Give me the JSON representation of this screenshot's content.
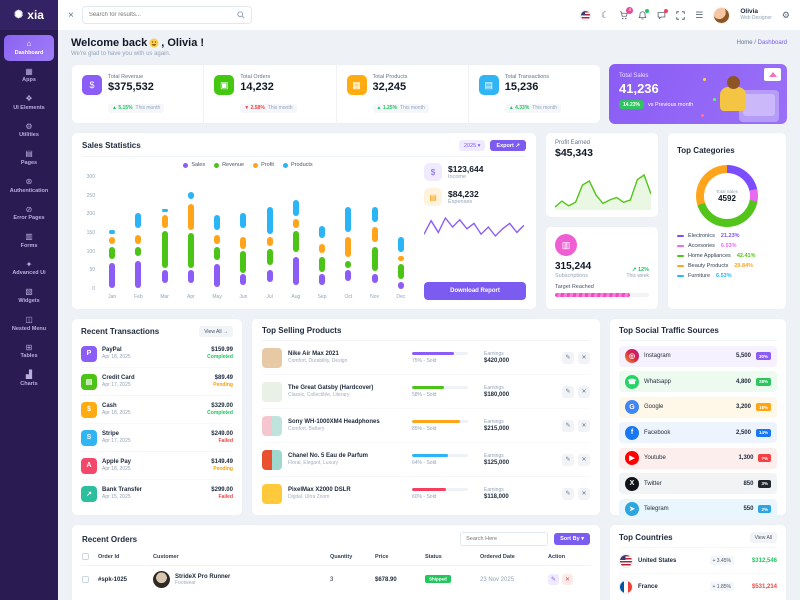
{
  "theme": {
    "accent": "#7c5cf0",
    "sidebar_bg": "#2a1c52",
    "success": "#22c55e",
    "danger": "#ef4444",
    "warning": "#f59e0b"
  },
  "sidebar": {
    "logo_text": "xia",
    "logo_icon": "✺",
    "items": [
      {
        "label": "Dashboard",
        "icon": "⌂"
      },
      {
        "label": "Apps",
        "icon": "▦"
      },
      {
        "label": "UI Elements",
        "icon": "❖"
      },
      {
        "label": "Utilities",
        "icon": "⚙"
      },
      {
        "label": "Pages",
        "icon": "▤"
      },
      {
        "label": "Authentication",
        "icon": "⊛"
      },
      {
        "label": "Error Pages",
        "icon": "⊘"
      },
      {
        "label": "Forms",
        "icon": "▥"
      },
      {
        "label": "Advanced Ui",
        "icon": "✦"
      },
      {
        "label": "Widgets",
        "icon": "▧"
      },
      {
        "label": "Nested Menu",
        "icon": "◫"
      },
      {
        "label": "Tables",
        "icon": "⊞"
      },
      {
        "label": "Charts",
        "icon": "▟"
      }
    ]
  },
  "topbar": {
    "close_icon": "×",
    "search_placeholder": "Search for results...",
    "cart_badge": "4",
    "moon_icon": "☾",
    "menu_icon": "☰",
    "gear_icon": "⚙",
    "user": {
      "name": "Olivia",
      "role": "Web Designer"
    }
  },
  "welcome": {
    "greeting": "Welcome back",
    "name_part": ", Olivia !",
    "subtitle": "We're glad to have you with us again."
  },
  "breadcrumb": {
    "home": "Home",
    "sep": "/",
    "current": "Dashboard"
  },
  "stats": [
    {
      "label": "Total Revenue",
      "value": "$375,532",
      "arrow": "▲",
      "pct": "5.15%",
      "note": "This month",
      "pct_color": "#22c55e",
      "icon": "$",
      "icon_bg": "#8b5cf6"
    },
    {
      "label": "Total Orders",
      "value": "14,232",
      "arrow": "▼",
      "pct": "2.58%",
      "note": "This month",
      "pct_color": "#ef4444",
      "icon": "▣",
      "icon_bg": "#43c710"
    },
    {
      "label": "Total Products",
      "value": "32,245",
      "arrow": "▲",
      "pct": "1.25%",
      "note": "This month",
      "pct_color": "#22c55e",
      "icon": "▦",
      "icon_bg": "#ffac12"
    },
    {
      "label": "Total Transactions",
      "value": "15,236",
      "arrow": "▲",
      "pct": "4.33%",
      "note": "This month",
      "pct_color": "#22c55e",
      "icon": "▤",
      "icon_bg": "#2fb5f3"
    }
  ],
  "total_sales": {
    "label": "Total Sales",
    "value": "41,236",
    "badge": "14.23%",
    "note": "vs Previous month"
  },
  "sales_statistics": {
    "title": "Sales Statistics",
    "year": "2025 ▾",
    "export_label": "Export ↗",
    "income": {
      "value": "$123,644",
      "label": "Income",
      "icon": "$",
      "icon_bg": "#efeaff",
      "icon_color": "#7c5cf0"
    },
    "expenses": {
      "value": "$84,232",
      "label": "Expenses",
      "icon": "▤",
      "icon_bg": "#fff3dd",
      "icon_color": "#f59e0b"
    },
    "income_trend": [
      40,
      55,
      42,
      58,
      48,
      56,
      46,
      52,
      40,
      48,
      38,
      46,
      52,
      42,
      50
    ],
    "download_label": "Download Report"
  },
  "chart_data": [
    {
      "type": "bar",
      "title": "Sales Statistics",
      "x": [
        "Jan",
        "Feb",
        "Mar",
        "Apr",
        "May",
        "Jun",
        "Jul",
        "Aug",
        "Sep",
        "Oct",
        "Nov",
        "Dec"
      ],
      "ylim": [
        0,
        300
      ],
      "yticks": [
        0,
        50,
        100,
        150,
        200,
        250,
        300
      ],
      "legend_position": "top",
      "grid": false,
      "series": [
        {
          "name": "Sales",
          "color": "#8b5cf6",
          "ranges": [
            [
              10,
              75
            ],
            [
              10,
              80
            ],
            [
              22,
              55
            ],
            [
              22,
              55
            ],
            [
              12,
              70
            ],
            [
              18,
              45
            ],
            [
              25,
              55
            ],
            [
              18,
              90
            ],
            [
              18,
              45
            ],
            [
              28,
              55
            ],
            [
              22,
              45
            ],
            [
              8,
              25
            ]
          ]
        },
        {
          "name": "Revenue",
          "color": "#4cc417",
          "ranges": [
            [
              85,
              115
            ],
            [
              92,
              115
            ],
            [
              62,
              155
            ],
            [
              62,
              150
            ],
            [
              82,
              115
            ],
            [
              48,
              105
            ],
            [
              68,
              110
            ],
            [
              103,
              155
            ],
            [
              50,
              90
            ],
            [
              60,
              78
            ],
            [
              53,
              115
            ],
            [
              33,
              70
            ]
          ]
        },
        {
          "name": "Profit",
          "color": "#ffa41b",
          "ranges": [
            [
              122,
              140
            ],
            [
              122,
              145
            ],
            [
              162,
              195
            ],
            [
              158,
              225
            ],
            [
              122,
              145
            ],
            [
              110,
              140
            ],
            [
              118,
              140
            ],
            [
              162,
              185
            ],
            [
              98,
              122
            ],
            [
              88,
              140
            ],
            [
              128,
              165
            ],
            [
              80,
              92
            ]
          ]
        },
        {
          "name": "Products",
          "color": "#29b5f6",
          "ranges": [
            [
              148,
              157
            ],
            [
              162,
              200
            ],
            [
              203,
              211
            ],
            [
              237,
              255
            ],
            [
              158,
              195
            ],
            [
              162,
              200
            ],
            [
              148,
              215
            ],
            [
              193,
              235
            ],
            [
              138,
              168
            ],
            [
              152,
              215
            ],
            [
              178,
              215
            ],
            [
              103,
              140
            ]
          ]
        }
      ]
    },
    {
      "type": "pie",
      "title": "Top Categories",
      "center": {
        "label": "Total Sales",
        "value": 4592
      },
      "labels": [
        "Electronics",
        "Accesories",
        "Home Appliances",
        "Beauty Products",
        "Furniture"
      ],
      "values": [
        21.23,
        6.53,
        42.41,
        29.84,
        6.53
      ],
      "colors": [
        "#7c4dff",
        "#e86af0",
        "#52c41a",
        "#ffa41b",
        "#29b5f6"
      ]
    }
  ],
  "profit_earned": {
    "label": "Profit Earned",
    "value": "$45,343",
    "color": "#52c41a",
    "trend": [
      18,
      28,
      20,
      26,
      55,
      62,
      38,
      24,
      30,
      34,
      26,
      30,
      64,
      72,
      40
    ]
  },
  "subscriptions": {
    "icon": "▥",
    "value": "315,244",
    "label": "Subscriptions",
    "change": "↗ 12%",
    "note": "This week",
    "target_label": "Target Reached",
    "progress": 80
  },
  "top_categories": {
    "title": "Top Categories",
    "center_label": "Total Sales",
    "center_value": "4592",
    "items": [
      {
        "label": "Electronics",
        "pct": "21.23%",
        "color": "#7c4dff"
      },
      {
        "label": "Accesories",
        "pct": "6.53%",
        "color": "#e86af0"
      },
      {
        "label": "Home Appliances",
        "pct": "42.41%",
        "color": "#52c41a"
      },
      {
        "label": "Beauty Products",
        "pct": "29.84%",
        "color": "#ffa41b"
      },
      {
        "label": "Furniture",
        "pct": "6.53%",
        "color": "#29b5f6"
      }
    ]
  },
  "transactions": {
    "title": "Recent Transactions",
    "view_all": "View All →",
    "items": [
      {
        "name": "PayPal",
        "date": "Apr 18, 2025",
        "amount": "$159.99",
        "status": "Completed",
        "status_color": "#22c55e",
        "icon": "P",
        "icon_bg": "#8b5cf6"
      },
      {
        "name": "Credit Card",
        "date": "Apr 17, 2025",
        "amount": "$89.49",
        "status": "Pending",
        "status_color": "#f59e0b",
        "icon": "▤",
        "icon_bg": "#4cc417"
      },
      {
        "name": "Cash",
        "date": "Apr 18, 2025",
        "amount": "$329.00",
        "status": "Completed",
        "status_color": "#22c55e",
        "icon": "$",
        "icon_bg": "#ffac12"
      },
      {
        "name": "Stripe",
        "date": "Apr 17, 2025",
        "amount": "$249.00",
        "status": "Failed",
        "status_color": "#ef4444",
        "icon": "S",
        "icon_bg": "#2fb5f3"
      },
      {
        "name": "Apple Pay",
        "date": "Apr 18, 2025",
        "amount": "$149.49",
        "status": "Pending",
        "status_color": "#f59e0b",
        "icon": "A",
        "icon_bg": "#f4486a"
      },
      {
        "name": "Bank Transfer",
        "date": "Apr 15, 2025",
        "amount": "$299.00",
        "status": "Failed",
        "status_color": "#ef4444",
        "icon": "↗",
        "icon_bg": "#2bbf9e"
      }
    ]
  },
  "products": {
    "title": "Top Selling Products",
    "earnings_label": "Earnings",
    "items": [
      {
        "name": "Nike Air Max 2021",
        "tags": "Comfort, Durability, Design",
        "sold": 75,
        "sold_label": "75% - Sold",
        "bar_color": "#8b5cf6",
        "earnings": "$420,000",
        "thumb_bg": "#e7c9a5"
      },
      {
        "name": "The Great Gatsby (Hardcover)",
        "tags": "Classic, Collectible, Literary",
        "sold": 58,
        "sold_label": "58% - Sold",
        "bar_color": "#4cc417",
        "earnings": "$180,000",
        "thumb_bg": "#e9f0e6"
      },
      {
        "name": "Sony WH-1000XM4 Headphones",
        "tags": "Comfort, Battery",
        "sold": 85,
        "sold_label": "85% - Sold",
        "bar_color": "#ffa41b",
        "earnings": "$215,000",
        "thumb_bg": "linear-gradient(90deg,#f6c6cf 50%,#bfe3dd 50%)"
      },
      {
        "name": "Chanel No. 5 Eau de Parfum",
        "tags": "Floral, Elegant, Luxury",
        "sold": 64,
        "sold_label": "64% - Sold",
        "bar_color": "#29b5f6",
        "earnings": "$125,000",
        "thumb_bg": "linear-gradient(90deg,#e8502f 50%,#9fd8cf 50%)"
      },
      {
        "name": "PixelMax X2000 DSLR",
        "tags": "Digital, Ultra Zoom",
        "sold": 60,
        "sold_label": "60% - Sold",
        "bar_color": "#f43f5e",
        "earnings": "$118,000",
        "thumb_bg": "#ffc93c"
      }
    ],
    "edit_icon": "✎",
    "delete_icon": "✕"
  },
  "social": {
    "title": "Top Social Traffic Sources",
    "items": [
      {
        "name": "Instagram",
        "value": "5,500",
        "share": "30%",
        "badge_bg": "#8b5cf6",
        "row_bg": "#f6f1ff",
        "icon": "◎",
        "icon_bg": "linear-gradient(45deg,#f09433,#dc2743,#bc1888)"
      },
      {
        "name": "Whatsapp",
        "value": "4,800",
        "share": "28%",
        "badge_bg": "#2ec55e",
        "row_bg": "#edfaf0",
        "icon": "☎",
        "icon_bg": "#25d366"
      },
      {
        "name": "Google",
        "value": "3,200",
        "share": "18%",
        "badge_bg": "#ffa412",
        "row_bg": "#fff7e8",
        "icon": "G",
        "icon_bg": "#4285f4"
      },
      {
        "name": "Facebook",
        "value": "2,500",
        "share": "14%",
        "badge_bg": "#1877f2",
        "row_bg": "#eef4fe",
        "icon": "f",
        "icon_bg": "#1877f2"
      },
      {
        "name": "Youtube",
        "value": "1,300",
        "share": "7%",
        "badge_bg": "#f43f43",
        "row_bg": "#fdeeee",
        "icon": "▶",
        "icon_bg": "#ff0000"
      },
      {
        "name": "Twitter",
        "value": "850",
        "share": "3%",
        "badge_bg": "#22272e",
        "row_bg": "#f1f3f5",
        "icon": "X",
        "icon_bg": "#111418"
      },
      {
        "name": "Telegram",
        "value": "550",
        "share": "2%",
        "badge_bg": "#2ca5e0",
        "row_bg": "#e9f6fd",
        "icon": "➤",
        "icon_bg": "#2ca5e0"
      }
    ]
  },
  "orders": {
    "title": "Recent Orders",
    "search_placeholder": "Search Here",
    "sort_label": "Sort By ▾",
    "columns": {
      "id": "Order Id",
      "customer": "Customer",
      "qty": "Quantity",
      "price": "Price",
      "status": "Status",
      "date": "Ordered Date",
      "action": "Action"
    },
    "rows": [
      {
        "id": "#spk-1025",
        "customer": "StrideX Pro Runner",
        "category": "Footwear",
        "qty": "3",
        "price": "$678.90",
        "status": "Shipped",
        "date": "23 Nov 2025"
      }
    ]
  },
  "countries": {
    "title": "Top Countries",
    "view_all": "View All",
    "items": [
      {
        "name": "United States",
        "change": "+ 3.45%",
        "amount": "$312,546",
        "amount_color": "#22c55e"
      },
      {
        "name": "France",
        "change": "+ 1.85%",
        "amount": "$531,214",
        "amount_color": "#ef4444"
      }
    ]
  }
}
